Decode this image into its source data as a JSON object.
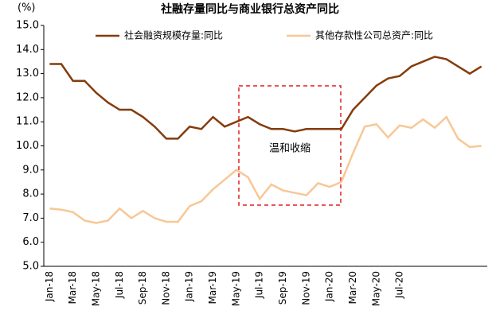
{
  "chart_data": {
    "type": "line",
    "title": "社融存量同比与商业银行总资产同比",
    "y_label": "(%)",
    "annotation": "温和收缩",
    "categories": [
      "Jan-18",
      null,
      "Mar-18",
      null,
      "May-18",
      null,
      "Jul-18",
      null,
      "Sep-18",
      null,
      "Nov-18",
      null,
      "Jan-19",
      null,
      "Mar-19",
      null,
      "May-19",
      null,
      "Jul-19",
      null,
      "Sep-19",
      null,
      "Nov-19",
      null,
      "Jan-20",
      null,
      "Mar-20",
      null,
      "May-20",
      null,
      "Jul-20",
      null,
      null,
      null,
      null,
      null,
      null,
      null
    ],
    "series": [
      {
        "name": "社会融资规模存量:同比",
        "color": "#843c0c",
        "values": [
          13.4,
          13.4,
          12.7,
          12.7,
          12.2,
          11.8,
          11.5,
          11.5,
          11.2,
          10.8,
          10.3,
          10.3,
          10.8,
          10.7,
          11.2,
          10.8,
          11.0,
          11.2,
          10.9,
          10.7,
          10.7,
          10.6,
          10.7,
          10.7,
          10.7,
          10.7,
          11.5,
          12.0,
          12.5,
          12.8,
          12.9,
          13.3,
          13.5,
          13.7,
          13.6,
          13.3,
          13.0,
          13.3
        ]
      },
      {
        "name": "其他存款性公司总资产:同比",
        "color": "#f8c796",
        "values": [
          7.4,
          7.35,
          7.25,
          6.9,
          6.8,
          6.9,
          7.4,
          7.0,
          7.3,
          7.0,
          6.85,
          6.85,
          7.5,
          7.7,
          8.2,
          8.6,
          9.0,
          8.7,
          7.8,
          8.4,
          8.15,
          8.05,
          7.95,
          8.45,
          8.3,
          8.5,
          9.7,
          10.8,
          10.9,
          10.35,
          10.85,
          10.75,
          11.1,
          10.75,
          11.2,
          10.3,
          9.95,
          10.0
        ]
      }
    ],
    "ylim": [
      5,
      15
    ],
    "yticks": [
      {
        "value": 5,
        "label": "5.0"
      },
      {
        "value": 6,
        "label": "6.0"
      },
      {
        "value": 7,
        "label": "7.0"
      },
      {
        "value": 8,
        "label": "8.0"
      },
      {
        "value": 9,
        "label": "9.0"
      },
      {
        "value": 10,
        "label": "10.0"
      },
      {
        "value": 11,
        "label": "11.0"
      },
      {
        "value": 12,
        "label": "12.0"
      },
      {
        "value": 13,
        "label": "13.0"
      },
      {
        "value": 14,
        "label": "14.0"
      },
      {
        "value": 15,
        "label": "15.0"
      }
    ],
    "grid": false
  }
}
